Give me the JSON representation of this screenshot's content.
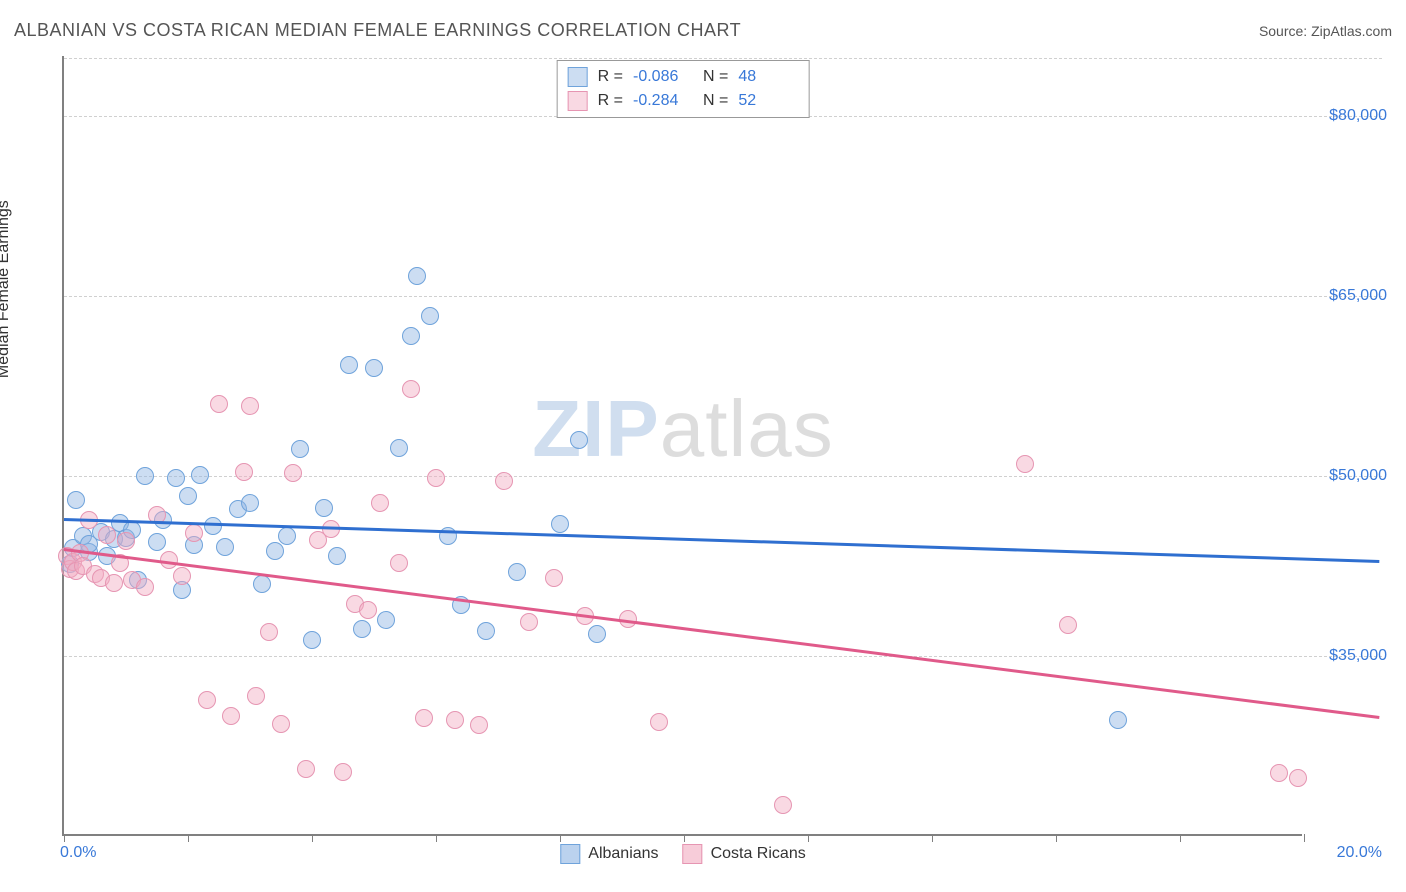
{
  "header": {
    "title": "ALBANIAN VS COSTA RICAN MEDIAN FEMALE EARNINGS CORRELATION CHART",
    "source_label": "Source: ",
    "source_value": "ZipAtlas.com"
  },
  "chart": {
    "type": "scatter",
    "ylabel": "Median Female Earnings",
    "xlim": [
      0,
      20
    ],
    "ylim": [
      20000,
      85000
    ],
    "x_tick_positions_pct": [
      0,
      2,
      4,
      6,
      8,
      10,
      12,
      14,
      16,
      18,
      20
    ],
    "x_label_min": "0.0%",
    "x_label_max": "20.0%",
    "y_gridlines": [
      35000,
      50000,
      65000,
      80000
    ],
    "y_tick_labels": [
      "$35,000",
      "$50,000",
      "$65,000",
      "$80,000"
    ],
    "background_color": "#ffffff",
    "grid_color": "#d0d0d0",
    "axis_color": "#808080",
    "watermark": {
      "zip": "ZIP",
      "atlas": "atlas"
    },
    "series": [
      {
        "name": "Albanians",
        "fill": "rgba(142,180,227,0.45)",
        "stroke": "#6fa3db",
        "trend_color": "#2f6fd0",
        "R": "-0.086",
        "N": "48",
        "trend": {
          "x1": 0,
          "y1": 46500,
          "x2": 20,
          "y2": 43000
        },
        "points": [
          [
            0.1,
            42500
          ],
          [
            0.15,
            43800
          ],
          [
            0.2,
            47800
          ],
          [
            0.3,
            44800
          ],
          [
            0.4,
            43500
          ],
          [
            0.4,
            44200
          ],
          [
            0.6,
            45200
          ],
          [
            0.7,
            43200
          ],
          [
            0.8,
            44600
          ],
          [
            0.9,
            45900
          ],
          [
            1.0,
            44700
          ],
          [
            1.1,
            45300
          ],
          [
            1.2,
            41200
          ],
          [
            1.3,
            49800
          ],
          [
            1.5,
            44300
          ],
          [
            1.6,
            46200
          ],
          [
            1.8,
            49700
          ],
          [
            1.9,
            40300
          ],
          [
            2.0,
            48200
          ],
          [
            2.1,
            44100
          ],
          [
            2.2,
            49900
          ],
          [
            2.4,
            45700
          ],
          [
            2.6,
            43900
          ],
          [
            2.8,
            47100
          ],
          [
            3.0,
            47600
          ],
          [
            3.2,
            40800
          ],
          [
            3.4,
            43600
          ],
          [
            3.6,
            44800
          ],
          [
            3.8,
            52100
          ],
          [
            4.0,
            36200
          ],
          [
            4.2,
            47200
          ],
          [
            4.4,
            43200
          ],
          [
            4.6,
            59100
          ],
          [
            4.8,
            37100
          ],
          [
            5.0,
            58800
          ],
          [
            5.2,
            37800
          ],
          [
            5.4,
            52200
          ],
          [
            5.6,
            61500
          ],
          [
            5.7,
            66500
          ],
          [
            5.9,
            63200
          ],
          [
            6.2,
            44800
          ],
          [
            6.4,
            39100
          ],
          [
            6.8,
            36900
          ],
          [
            7.3,
            41800
          ],
          [
            8.0,
            45800
          ],
          [
            8.3,
            52800
          ],
          [
            8.6,
            36700
          ],
          [
            17.0,
            29500
          ]
        ]
      },
      {
        "name": "Costa Ricans",
        "fill": "rgba(242,170,192,0.45)",
        "stroke": "#e695b2",
        "trend_color": "#e05a8a",
        "R": "-0.284",
        "N": "52",
        "trend": {
          "x1": 0,
          "y1": 44000,
          "x2": 20,
          "y2": 30000
        },
        "points": [
          [
            0.05,
            43200
          ],
          [
            0.1,
            42100
          ],
          [
            0.15,
            42700
          ],
          [
            0.2,
            41900
          ],
          [
            0.25,
            43400
          ],
          [
            0.3,
            42300
          ],
          [
            0.4,
            46200
          ],
          [
            0.5,
            41700
          ],
          [
            0.6,
            41300
          ],
          [
            0.7,
            44900
          ],
          [
            0.8,
            40900
          ],
          [
            0.9,
            42600
          ],
          [
            1.0,
            44400
          ],
          [
            1.1,
            41200
          ],
          [
            1.3,
            40600
          ],
          [
            1.5,
            46600
          ],
          [
            1.7,
            42800
          ],
          [
            1.9,
            41500
          ],
          [
            2.1,
            45100
          ],
          [
            2.3,
            31200
          ],
          [
            2.5,
            55800
          ],
          [
            2.7,
            29800
          ],
          [
            2.9,
            50200
          ],
          [
            3.0,
            55700
          ],
          [
            3.1,
            31500
          ],
          [
            3.3,
            36800
          ],
          [
            3.5,
            29200
          ],
          [
            3.7,
            50100
          ],
          [
            3.9,
            25400
          ],
          [
            4.1,
            44500
          ],
          [
            4.3,
            45400
          ],
          [
            4.5,
            25200
          ],
          [
            4.7,
            39200
          ],
          [
            4.9,
            38700
          ],
          [
            5.1,
            47600
          ],
          [
            5.4,
            42600
          ],
          [
            5.6,
            57100
          ],
          [
            5.8,
            29700
          ],
          [
            6.0,
            49700
          ],
          [
            6.3,
            29500
          ],
          [
            6.7,
            29100
          ],
          [
            7.1,
            49400
          ],
          [
            7.5,
            37700
          ],
          [
            7.9,
            41300
          ],
          [
            8.4,
            38200
          ],
          [
            9.1,
            37900
          ],
          [
            9.6,
            29300
          ],
          [
            11.6,
            22400
          ],
          [
            15.5,
            50800
          ],
          [
            16.2,
            37400
          ],
          [
            19.6,
            25100
          ],
          [
            19.9,
            24700
          ]
        ]
      }
    ],
    "legend_bottom": [
      {
        "label": "Albanians",
        "fill": "rgba(142,180,227,0.6)",
        "stroke": "#6fa3db"
      },
      {
        "label": "Costa Ricans",
        "fill": "rgba(242,170,192,0.6)",
        "stroke": "#e695b2"
      }
    ],
    "legend_top_labels": {
      "R": "R =",
      "N": "N ="
    }
  }
}
